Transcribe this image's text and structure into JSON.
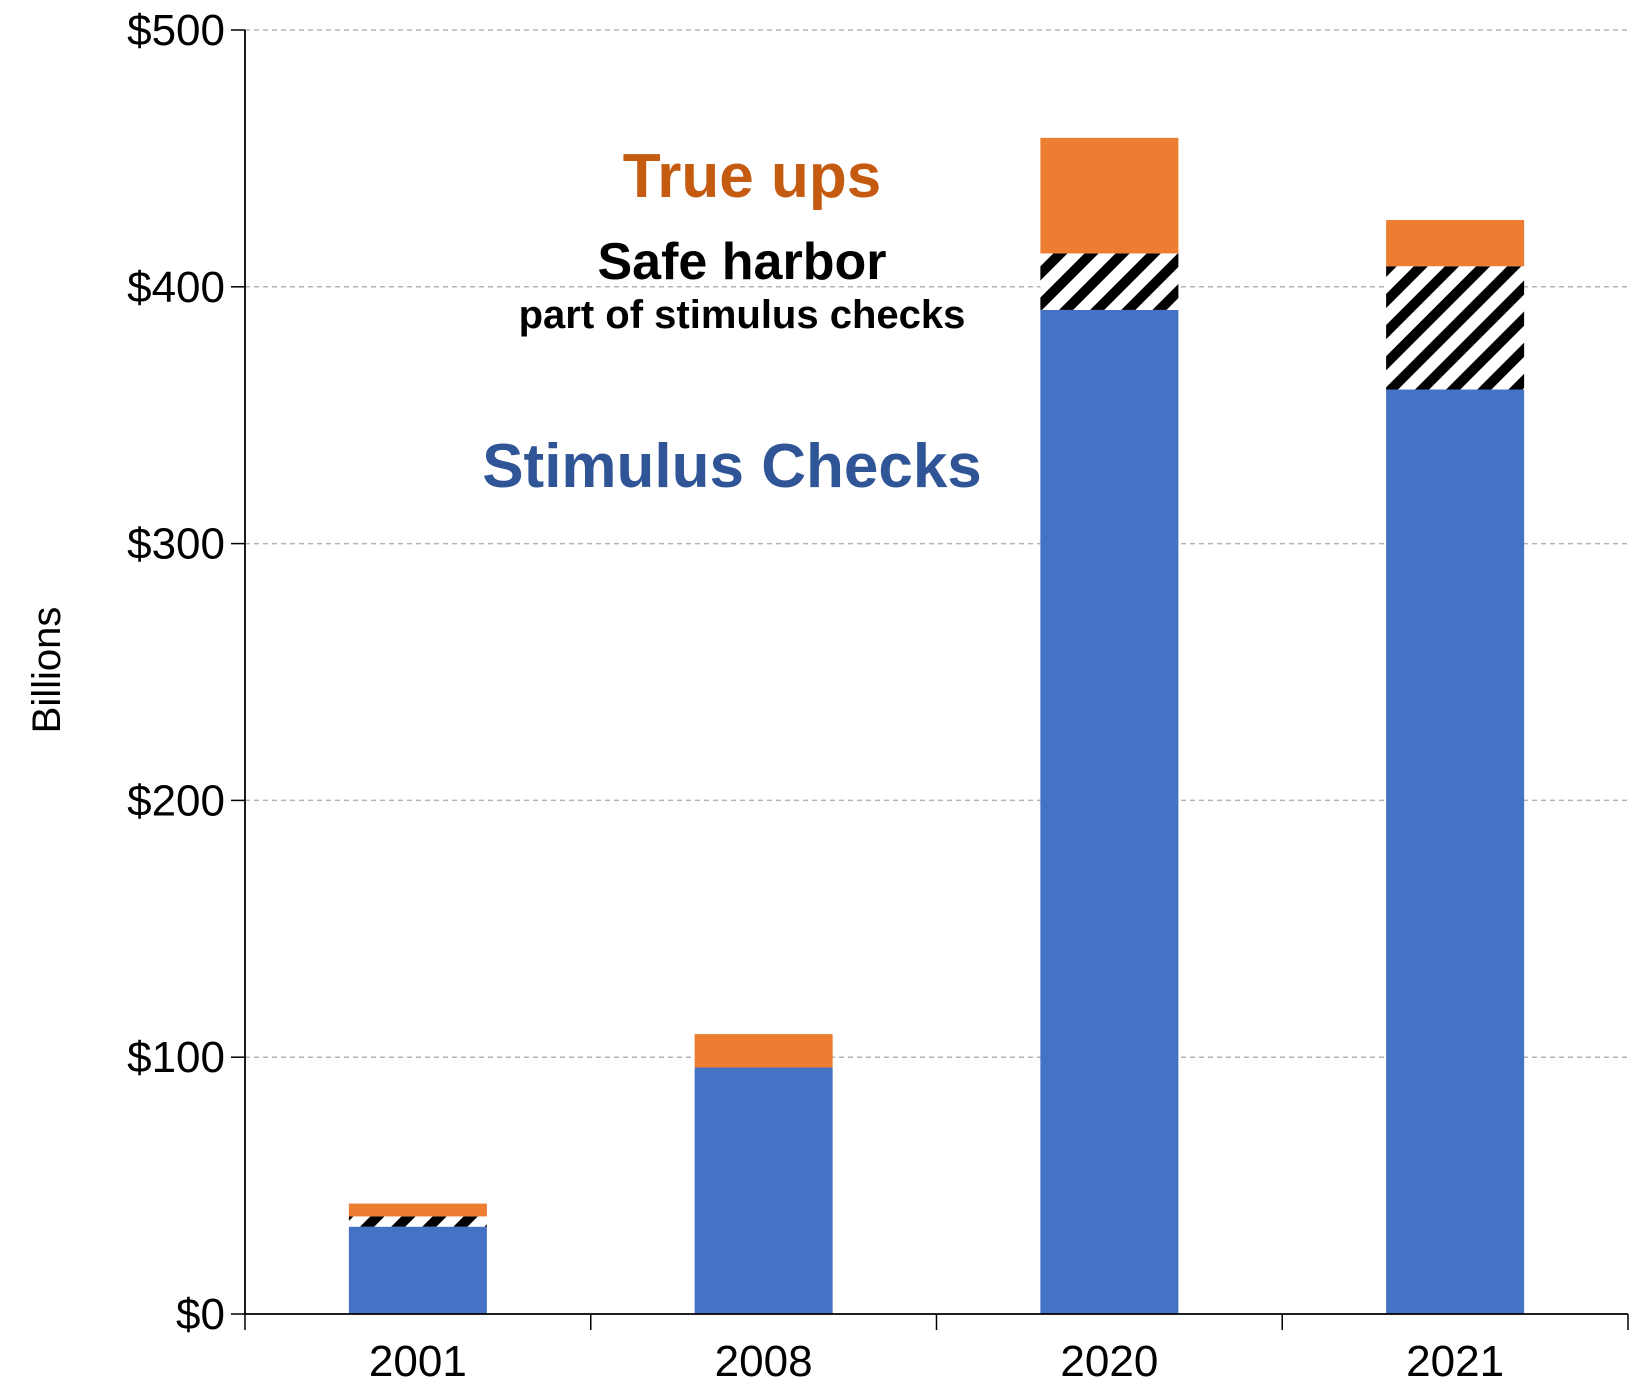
{
  "chart_data": {
    "type": "bar",
    "stacked": true,
    "categories": [
      "2001",
      "2008",
      "2020",
      "2021"
    ],
    "series": [
      {
        "name": "Stimulus Checks",
        "values": [
          34,
          96,
          391,
          360
        ],
        "color": "#4472c4",
        "pattern": "solid"
      },
      {
        "name": "Safe harbor",
        "values": [
          4,
          0,
          22,
          48
        ],
        "color": "#000000",
        "pattern": "diagonal-hatch"
      },
      {
        "name": "True ups",
        "values": [
          5,
          13,
          45,
          18
        ],
        "color": "#ed7d31",
        "pattern": "solid"
      }
    ],
    "ylabel": "Billions",
    "ylim": [
      0,
      500
    ],
    "yticks": [
      0,
      100,
      200,
      300,
      400,
      500
    ],
    "ytick_labels": [
      "$0",
      "$100",
      "$200",
      "$300",
      "$400",
      "$500"
    ],
    "grid": "horizontal-dashed",
    "annotations": {
      "true_ups": {
        "text": "True ups",
        "color": "#c55a11"
      },
      "safe_harbor": {
        "text": "Safe harbor",
        "color": "#000000"
      },
      "safe_harbor_sub": {
        "text": "part of stimulus checks",
        "color": "#000000"
      },
      "stimulus": {
        "text": "Stimulus Checks",
        "color": "#2f5597"
      }
    }
  }
}
